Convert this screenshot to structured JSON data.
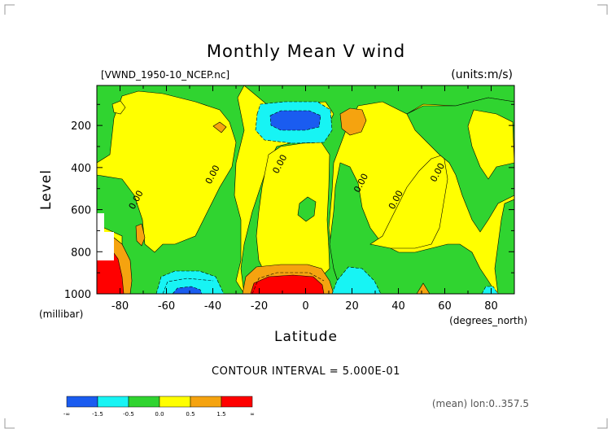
{
  "chart_data": {
    "type": "heatmap",
    "title": "Monthly Mean V wind",
    "source_label": "[VWND_1950-10_NCEP.nc]",
    "units_label": "(units:m/s)",
    "xlabel": "Latitude",
    "x_unit_label": "(degrees_north)",
    "ylabel": "Level",
    "y_unit_label": "(millibar)",
    "xlim": [
      -90,
      90
    ],
    "ylim": [
      1000,
      10
    ],
    "x_ticks": [
      -80,
      -60,
      -40,
      -20,
      0,
      20,
      40,
      60,
      80
    ],
    "y_ticks": [
      200,
      400,
      600,
      800,
      1000
    ],
    "contour_interval_text": "CONTOUR INTERVAL = 5.000E-01",
    "mean_note": "(mean) lon:0..357.5",
    "contour_labels": [
      {
        "text": "0.00",
        "x": -72,
        "y": 560
      },
      {
        "text": "0.00",
        "x": -39,
        "y": 440
      },
      {
        "text": "0.00",
        "x": -10,
        "y": 390
      },
      {
        "text": "0.00",
        "x": 25,
        "y": 480
      },
      {
        "text": "0.00",
        "x": 40,
        "y": 560
      },
      {
        "text": "0.00",
        "x": 58,
        "y": 430
      }
    ],
    "levels": [
      {
        "range": "< -1.5",
        "color": "#1a5cf0",
        "label": "-∞"
      },
      {
        "range": "-1.5 to -0.5",
        "color": "#17f4f4",
        "label": "-1.5"
      },
      {
        "range": "-0.5 to 0.0",
        "color": "#30d430",
        "label": "-0.5"
      },
      {
        "range": "0.0 to 0.5",
        "color": "#ffff00",
        "label": "0.0"
      },
      {
        "range": "0.5 to 1.5",
        "color": "#f5a30f",
        "label": "0.5"
      },
      {
        "range": "> 1.5",
        "color": "#ff0000",
        "label": "1.5"
      }
    ],
    "colorbar_labels": [
      "-∞",
      "-1.5",
      "-0.5",
      "0.0",
      "0.5",
      "1.5",
      "∞"
    ],
    "regions": [
      {
        "sign": "negative",
        "lat_range": [
          -20,
          8
        ],
        "lev_range": [
          120,
          270
        ],
        "peak": "< -1.5"
      },
      {
        "sign": "negative",
        "lat_range": [
          -65,
          -40
        ],
        "lev_range": [
          890,
          1000
        ],
        "peak": "< -1.5"
      },
      {
        "sign": "positive",
        "lat_range": [
          -25,
          12
        ],
        "lev_range": [
          860,
          1000
        ],
        "peak": "> 1.5"
      },
      {
        "sign": "positive",
        "lat_range": [
          -90,
          -78
        ],
        "lev_range": [
          700,
          1000
        ],
        "peak": "> 1.5"
      },
      {
        "sign": "positive",
        "lat_range": [
          15,
          28
        ],
        "lev_range": [
          130,
          250
        ],
        "peak": "0.5 to 1.5"
      },
      {
        "sign": "negative",
        "lat_range": [
          18,
          38
        ],
        "lev_range": [
          880,
          1000
        ],
        "peak": "-1.5 to -0.5"
      }
    ]
  }
}
